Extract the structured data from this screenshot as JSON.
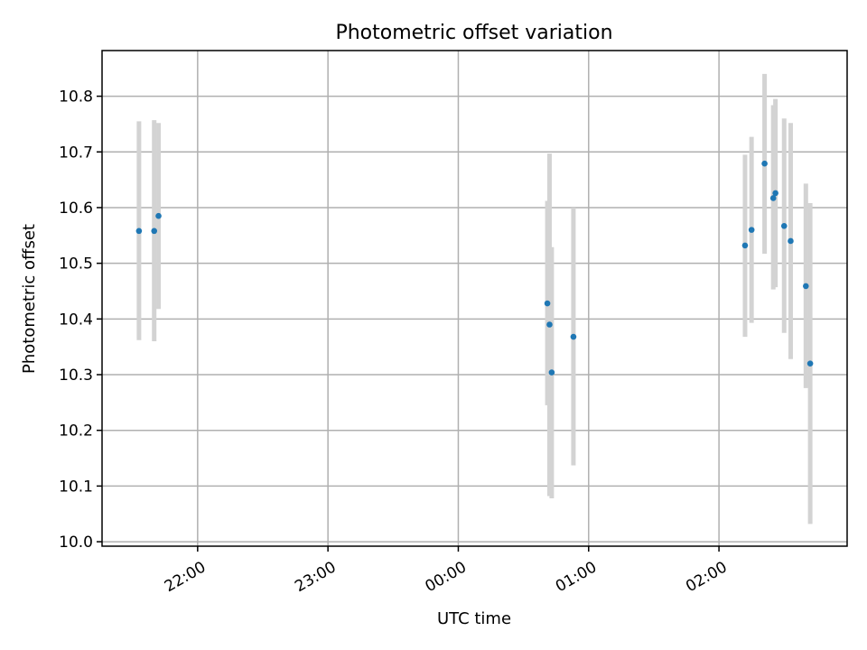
{
  "chart_data": {
    "type": "scatter",
    "title": "Photometric offset variation",
    "xlabel": "UTC time",
    "ylabel": "Photometric offset",
    "x_axis_kind": "time",
    "x_ticks": [
      "22:00",
      "23:00",
      "00:00",
      "01:00",
      "02:00"
    ],
    "xlim": [
      "21:16",
      "02:59"
    ],
    "ylim": [
      9.992,
      10.882
    ],
    "y_ticks": [
      10.0,
      10.1,
      10.2,
      10.3,
      10.4,
      10.5,
      10.6,
      10.7,
      10.8
    ],
    "grid": true,
    "colors": {
      "points": "#1f77b4",
      "error_bars": "#d3d3d3"
    },
    "series": [
      {
        "points": [
          {
            "t": "21:33",
            "y": 10.558,
            "ylow": 10.362,
            "yhigh": 10.755
          },
          {
            "t": "21:40",
            "y": 10.558,
            "ylow": 10.36,
            "yhigh": 10.757
          },
          {
            "t": "21:42",
            "y": 10.585,
            "ylow": 10.418,
            "yhigh": 10.752
          },
          {
            "t": "00:41",
            "y": 10.428,
            "ylow": 10.245,
            "yhigh": 10.612
          },
          {
            "t": "00:42",
            "y": 10.39,
            "ylow": 10.082,
            "yhigh": 10.697
          },
          {
            "t": "00:43",
            "y": 10.304,
            "ylow": 10.078,
            "yhigh": 10.529
          },
          {
            "t": "00:53",
            "y": 10.368,
            "ylow": 10.137,
            "yhigh": 10.6
          },
          {
            "t": "02:12",
            "y": 10.532,
            "ylow": 10.368,
            "yhigh": 10.695
          },
          {
            "t": "02:15",
            "y": 10.56,
            "ylow": 10.393,
            "yhigh": 10.727
          },
          {
            "t": "02:21",
            "y": 10.679,
            "ylow": 10.517,
            "yhigh": 10.84
          },
          {
            "t": "02:25",
            "y": 10.617,
            "ylow": 10.453,
            "yhigh": 10.784
          },
          {
            "t": "02:26",
            "y": 10.626,
            "ylow": 10.457,
            "yhigh": 10.795
          },
          {
            "t": "02:30",
            "y": 10.567,
            "ylow": 10.375,
            "yhigh": 10.76
          },
          {
            "t": "02:33",
            "y": 10.54,
            "ylow": 10.328,
            "yhigh": 10.752
          },
          {
            "t": "02:40",
            "y": 10.459,
            "ylow": 10.276,
            "yhigh": 10.643
          },
          {
            "t": "02:42",
            "y": 10.32,
            "ylow": 10.032,
            "yhigh": 10.608
          }
        ]
      }
    ]
  }
}
